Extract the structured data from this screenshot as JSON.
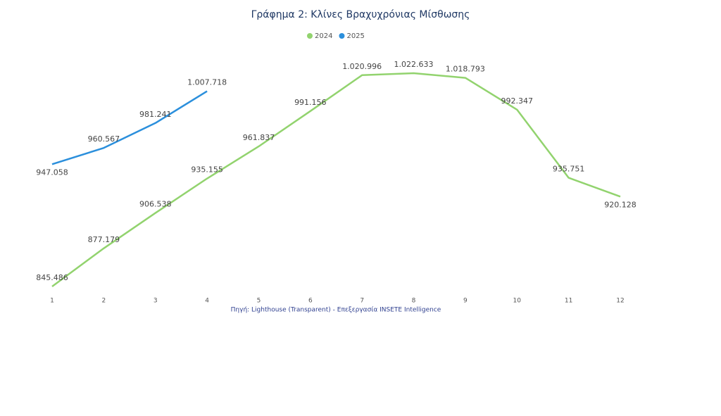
{
  "chart_data": {
    "type": "line",
    "title": "Γράφημα 2: Κλίνες Βραχυχρόνιας Μίσθωσης",
    "source": "Πηγή: Lighthouse (Transparent) - Επεξεργασία INSETE Intelligence",
    "x": [
      1,
      2,
      3,
      4,
      5,
      6,
      7,
      8,
      9,
      10,
      11,
      12
    ],
    "series": [
      {
        "name": "2024",
        "color": "#92d36e",
        "values": [
          845486,
          877179,
          906538,
          935155,
          961837,
          991156,
          1020996,
          1022633,
          1018793,
          992347,
          935751,
          920128
        ],
        "value_labels": [
          "845.486",
          "877.179",
          "906.538",
          "935.155",
          "961.837",
          "991.156",
          "1.020.996",
          "1.022.633",
          "1.018.793",
          "992.347",
          "935.751",
          "920.128"
        ]
      },
      {
        "name": "2025",
        "color": "#2b8fdc",
        "values": [
          947058,
          960567,
          981241,
          1007718,
          null,
          null,
          null,
          null,
          null,
          null,
          null,
          null
        ],
        "value_labels": [
          "947.058",
          "960.567",
          "981.241",
          "1.007.718",
          null,
          null,
          null,
          null,
          null,
          null,
          null,
          null
        ]
      }
    ],
    "legend": "top"
  }
}
